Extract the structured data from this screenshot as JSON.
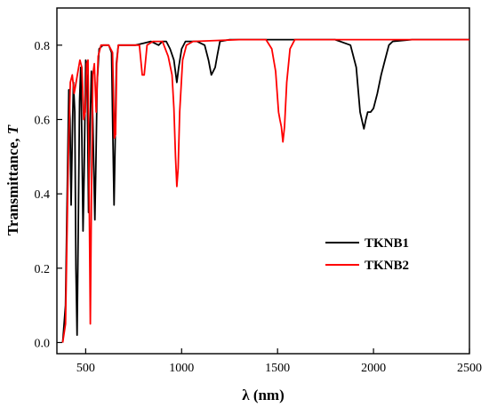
{
  "chart_data": {
    "type": "line",
    "xlabel": "λ (nm)",
    "ylabel": "Transmittance, ",
    "ylabel_symbol": "T",
    "xlim": [
      350,
      2500
    ],
    "ylim": [
      -0.03,
      0.9
    ],
    "xticks": [
      500,
      1000,
      1500,
      2000,
      2500
    ],
    "yticks": [
      0.0,
      0.2,
      0.4,
      0.6,
      0.8
    ],
    "xtick_labels": [
      "500",
      "1000",
      "1500",
      "2000",
      "2500"
    ],
    "ytick_labels": [
      "0.0",
      "0.2",
      "0.4",
      "0.6",
      "0.8"
    ],
    "grid": false,
    "legend_position": "center-right",
    "series": [
      {
        "name": "TKNB1",
        "color": "#000000",
        "points": [
          [
            380,
            0.0
          ],
          [
            395,
            0.1
          ],
          [
            405,
            0.45
          ],
          [
            412,
            0.68
          ],
          [
            418,
            0.6
          ],
          [
            424,
            0.37
          ],
          [
            430,
            0.55
          ],
          [
            436,
            0.7
          ],
          [
            443,
            0.62
          ],
          [
            449,
            0.2
          ],
          [
            455,
            0.02
          ],
          [
            461,
            0.3
          ],
          [
            468,
            0.65
          ],
          [
            474,
            0.74
          ],
          [
            480,
            0.55
          ],
          [
            486,
            0.3
          ],
          [
            492,
            0.45
          ],
          [
            500,
            0.76
          ],
          [
            508,
            0.7
          ],
          [
            515,
            0.35
          ],
          [
            522,
            0.55
          ],
          [
            530,
            0.73
          ],
          [
            537,
            0.6
          ],
          [
            542,
            0.48
          ],
          [
            548,
            0.33
          ],
          [
            554,
            0.5
          ],
          [
            560,
            0.7
          ],
          [
            570,
            0.79
          ],
          [
            590,
            0.8
          ],
          [
            620,
            0.8
          ],
          [
            635,
            0.78
          ],
          [
            642,
            0.55
          ],
          [
            648,
            0.37
          ],
          [
            654,
            0.55
          ],
          [
            660,
            0.75
          ],
          [
            670,
            0.8
          ],
          [
            700,
            0.8
          ],
          [
            760,
            0.8
          ],
          [
            800,
            0.805
          ],
          [
            840,
            0.81
          ],
          [
            880,
            0.8
          ],
          [
            900,
            0.81
          ],
          [
            920,
            0.81
          ],
          [
            940,
            0.79
          ],
          [
            960,
            0.76
          ],
          [
            975,
            0.7
          ],
          [
            985,
            0.74
          ],
          [
            1000,
            0.79
          ],
          [
            1020,
            0.81
          ],
          [
            1080,
            0.81
          ],
          [
            1120,
            0.8
          ],
          [
            1140,
            0.76
          ],
          [
            1155,
            0.72
          ],
          [
            1165,
            0.73
          ],
          [
            1175,
            0.74
          ],
          [
            1185,
            0.77
          ],
          [
            1200,
            0.81
          ],
          [
            1250,
            0.815
          ],
          [
            1400,
            0.815
          ],
          [
            1480,
            0.815
          ],
          [
            1800,
            0.815
          ],
          [
            1880,
            0.8
          ],
          [
            1910,
            0.74
          ],
          [
            1930,
            0.62
          ],
          [
            1950,
            0.575
          ],
          [
            1960,
            0.6
          ],
          [
            1970,
            0.62
          ],
          [
            1985,
            0.62
          ],
          [
            2000,
            0.63
          ],
          [
            2020,
            0.67
          ],
          [
            2040,
            0.72
          ],
          [
            2060,
            0.76
          ],
          [
            2080,
            0.8
          ],
          [
            2100,
            0.81
          ],
          [
            2200,
            0.815
          ],
          [
            2500,
            0.815
          ]
        ]
      },
      {
        "name": "TKNB2",
        "color": "#ff0000",
        "points": [
          [
            380,
            0.0
          ],
          [
            395,
            0.05
          ],
          [
            410,
            0.5
          ],
          [
            420,
            0.7
          ],
          [
            430,
            0.72
          ],
          [
            440,
            0.67
          ],
          [
            450,
            0.7
          ],
          [
            460,
            0.73
          ],
          [
            470,
            0.76
          ],
          [
            480,
            0.74
          ],
          [
            490,
            0.6
          ],
          [
            498,
            0.62
          ],
          [
            505,
            0.75
          ],
          [
            512,
            0.76
          ],
          [
            518,
            0.4
          ],
          [
            524,
            0.05
          ],
          [
            530,
            0.38
          ],
          [
            537,
            0.72
          ],
          [
            545,
            0.75
          ],
          [
            555,
            0.62
          ],
          [
            565,
            0.77
          ],
          [
            580,
            0.8
          ],
          [
            620,
            0.8
          ],
          [
            640,
            0.78
          ],
          [
            650,
            0.55
          ],
          [
            656,
            0.56
          ],
          [
            662,
            0.75
          ],
          [
            670,
            0.8
          ],
          [
            760,
            0.8
          ],
          [
            780,
            0.8
          ],
          [
            795,
            0.72
          ],
          [
            805,
            0.72
          ],
          [
            820,
            0.8
          ],
          [
            850,
            0.81
          ],
          [
            900,
            0.81
          ],
          [
            930,
            0.77
          ],
          [
            950,
            0.72
          ],
          [
            960,
            0.63
          ],
          [
            968,
            0.5
          ],
          [
            975,
            0.42
          ],
          [
            982,
            0.47
          ],
          [
            990,
            0.62
          ],
          [
            1005,
            0.76
          ],
          [
            1025,
            0.8
          ],
          [
            1060,
            0.81
          ],
          [
            1300,
            0.815
          ],
          [
            1440,
            0.815
          ],
          [
            1470,
            0.79
          ],
          [
            1490,
            0.73
          ],
          [
            1505,
            0.62
          ],
          [
            1512,
            0.6
          ],
          [
            1520,
            0.58
          ],
          [
            1528,
            0.54
          ],
          [
            1536,
            0.58
          ],
          [
            1548,
            0.7
          ],
          [
            1565,
            0.79
          ],
          [
            1590,
            0.815
          ],
          [
            1700,
            0.815
          ],
          [
            2500,
            0.815
          ]
        ]
      }
    ]
  }
}
